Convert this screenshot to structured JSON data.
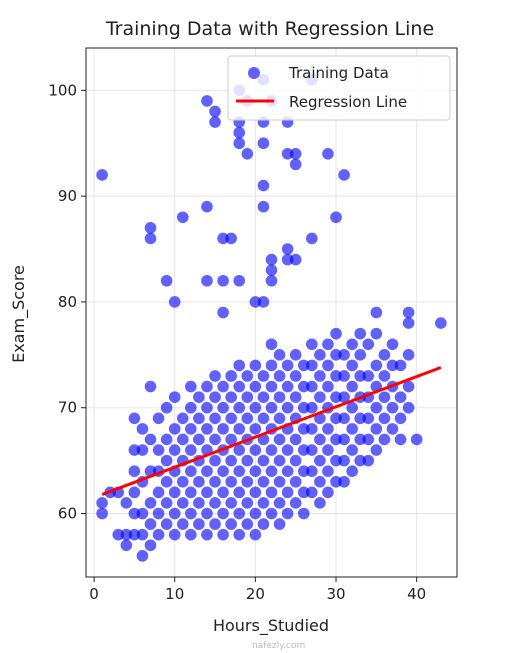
{
  "chart_data": {
    "type": "scatter",
    "title": "Training Data with Regression Line",
    "xlabel": "Hours_Studied",
    "ylabel": "Exam_Score",
    "xlim": [
      -1,
      45
    ],
    "ylim": [
      54,
      104
    ],
    "xticks": [
      0,
      10,
      20,
      30,
      40
    ],
    "yticks": [
      60,
      70,
      80,
      90,
      100
    ],
    "grid": true,
    "legend_position": "top-right",
    "series": [
      {
        "name": "Training Data",
        "kind": "scatter",
        "color": "#0000ff",
        "points": [
          [
            1,
            92
          ],
          [
            1,
            61
          ],
          [
            1,
            60
          ],
          [
            2,
            62
          ],
          [
            3,
            58
          ],
          [
            3,
            62
          ],
          [
            4,
            57
          ],
          [
            4,
            58
          ],
          [
            4,
            61
          ],
          [
            5,
            58
          ],
          [
            5,
            60
          ],
          [
            5,
            62
          ],
          [
            5,
            64
          ],
          [
            5,
            66
          ],
          [
            5,
            69
          ],
          [
            6,
            56
          ],
          [
            6,
            58
          ],
          [
            6,
            60
          ],
          [
            6,
            63
          ],
          [
            6,
            66
          ],
          [
            6,
            68
          ],
          [
            7,
            57
          ],
          [
            7,
            59
          ],
          [
            7,
            61
          ],
          [
            7,
            64
          ],
          [
            7,
            67
          ],
          [
            7,
            72
          ],
          [
            7,
            86
          ],
          [
            7,
            87
          ],
          [
            8,
            58
          ],
          [
            8,
            60
          ],
          [
            8,
            62
          ],
          [
            8,
            64
          ],
          [
            8,
            66
          ],
          [
            8,
            69
          ],
          [
            9,
            59
          ],
          [
            9,
            61
          ],
          [
            9,
            63
          ],
          [
            9,
            65
          ],
          [
            9,
            67
          ],
          [
            9,
            70
          ],
          [
            9,
            82
          ],
          [
            10,
            58
          ],
          [
            10,
            60
          ],
          [
            10,
            62
          ],
          [
            10,
            64
          ],
          [
            10,
            66
          ],
          [
            10,
            68
          ],
          [
            10,
            71
          ],
          [
            10,
            80
          ],
          [
            11,
            59
          ],
          [
            11,
            61
          ],
          [
            11,
            63
          ],
          [
            11,
            65
          ],
          [
            11,
            67
          ],
          [
            11,
            69
          ],
          [
            11,
            88
          ],
          [
            12,
            58
          ],
          [
            12,
            60
          ],
          [
            12,
            62
          ],
          [
            12,
            64
          ],
          [
            12,
            66
          ],
          [
            12,
            68
          ],
          [
            12,
            70
          ],
          [
            12,
            72
          ],
          [
            13,
            59
          ],
          [
            13,
            61
          ],
          [
            13,
            63
          ],
          [
            13,
            65
          ],
          [
            13,
            67
          ],
          [
            13,
            69
          ],
          [
            13,
            71
          ],
          [
            14,
            58
          ],
          [
            14,
            60
          ],
          [
            14,
            62
          ],
          [
            14,
            64
          ],
          [
            14,
            66
          ],
          [
            14,
            68
          ],
          [
            14,
            70
          ],
          [
            14,
            72
          ],
          [
            14,
            82
          ],
          [
            14,
            89
          ],
          [
            14,
            99
          ],
          [
            15,
            59
          ],
          [
            15,
            61
          ],
          [
            15,
            63
          ],
          [
            15,
            65
          ],
          [
            15,
            67
          ],
          [
            15,
            69
          ],
          [
            15,
            71
          ],
          [
            15,
            73
          ],
          [
            15,
            97
          ],
          [
            15,
            98
          ],
          [
            16,
            58
          ],
          [
            16,
            60
          ],
          [
            16,
            62
          ],
          [
            16,
            64
          ],
          [
            16,
            66
          ],
          [
            16,
            68
          ],
          [
            16,
            70
          ],
          [
            16,
            72
          ],
          [
            16,
            79
          ],
          [
            16,
            82
          ],
          [
            16,
            86
          ],
          [
            17,
            59
          ],
          [
            17,
            61
          ],
          [
            17,
            63
          ],
          [
            17,
            65
          ],
          [
            17,
            67
          ],
          [
            17,
            69
          ],
          [
            17,
            71
          ],
          [
            17,
            73
          ],
          [
            17,
            86
          ],
          [
            18,
            58
          ],
          [
            18,
            60
          ],
          [
            18,
            62
          ],
          [
            18,
            64
          ],
          [
            18,
            66
          ],
          [
            18,
            68
          ],
          [
            18,
            70
          ],
          [
            18,
            72
          ],
          [
            18,
            74
          ],
          [
            18,
            82
          ],
          [
            18,
            95
          ],
          [
            18,
            96
          ],
          [
            18,
            97
          ],
          [
            18,
            100
          ],
          [
            19,
            59
          ],
          [
            19,
            61
          ],
          [
            19,
            63
          ],
          [
            19,
            65
          ],
          [
            19,
            67
          ],
          [
            19,
            69
          ],
          [
            19,
            71
          ],
          [
            19,
            73
          ],
          [
            19,
            94
          ],
          [
            19,
            99
          ],
          [
            20,
            58
          ],
          [
            20,
            60
          ],
          [
            20,
            62
          ],
          [
            20,
            64
          ],
          [
            20,
            66
          ],
          [
            20,
            68
          ],
          [
            20,
            70
          ],
          [
            20,
            72
          ],
          [
            20,
            74
          ],
          [
            20,
            80
          ],
          [
            21,
            59
          ],
          [
            21,
            61
          ],
          [
            21,
            63
          ],
          [
            21,
            65
          ],
          [
            21,
            67
          ],
          [
            21,
            69
          ],
          [
            21,
            71
          ],
          [
            21,
            73
          ],
          [
            21,
            80
          ],
          [
            21,
            89
          ],
          [
            21,
            91
          ],
          [
            21,
            95
          ],
          [
            21,
            97
          ],
          [
            21,
            101
          ],
          [
            22,
            60
          ],
          [
            22,
            62
          ],
          [
            22,
            64
          ],
          [
            22,
            66
          ],
          [
            22,
            68
          ],
          [
            22,
            70
          ],
          [
            22,
            72
          ],
          [
            22,
            74
          ],
          [
            22,
            76
          ],
          [
            22,
            82
          ],
          [
            22,
            83
          ],
          [
            22,
            84
          ],
          [
            22,
            99
          ],
          [
            23,
            59
          ],
          [
            23,
            61
          ],
          [
            23,
            63
          ],
          [
            23,
            65
          ],
          [
            23,
            67
          ],
          [
            23,
            69
          ],
          [
            23,
            71
          ],
          [
            23,
            73
          ],
          [
            23,
            75
          ],
          [
            24,
            60
          ],
          [
            24,
            62
          ],
          [
            24,
            64
          ],
          [
            24,
            66
          ],
          [
            24,
            68
          ],
          [
            24,
            70
          ],
          [
            24,
            72
          ],
          [
            24,
            74
          ],
          [
            24,
            84
          ],
          [
            24,
            85
          ],
          [
            24,
            94
          ],
          [
            24,
            97
          ],
          [
            25,
            61
          ],
          [
            25,
            63
          ],
          [
            25,
            65
          ],
          [
            25,
            67
          ],
          [
            25,
            69
          ],
          [
            25,
            71
          ],
          [
            25,
            73
          ],
          [
            25,
            75
          ],
          [
            25,
            84
          ],
          [
            25,
            93
          ],
          [
            25,
            94
          ],
          [
            26,
            60
          ],
          [
            26,
            62
          ],
          [
            26,
            64
          ],
          [
            26,
            66
          ],
          [
            26,
            68
          ],
          [
            26,
            70
          ],
          [
            26,
            72
          ],
          [
            26,
            74
          ],
          [
            27,
            62
          ],
          [
            27,
            64
          ],
          [
            27,
            66
          ],
          [
            27,
            68
          ],
          [
            27,
            70
          ],
          [
            27,
            72
          ],
          [
            27,
            74
          ],
          [
            27,
            76
          ],
          [
            27,
            86
          ],
          [
            27,
            101
          ],
          [
            28,
            61
          ],
          [
            28,
            63
          ],
          [
            28,
            65
          ],
          [
            28,
            67
          ],
          [
            28,
            69
          ],
          [
            28,
            71
          ],
          [
            28,
            73
          ],
          [
            28,
            75
          ],
          [
            29,
            62
          ],
          [
            29,
            64
          ],
          [
            29,
            66
          ],
          [
            29,
            68
          ],
          [
            29,
            70
          ],
          [
            29,
            72
          ],
          [
            29,
            74
          ],
          [
            29,
            76
          ],
          [
            29,
            94
          ],
          [
            30,
            63
          ],
          [
            30,
            65
          ],
          [
            30,
            67
          ],
          [
            30,
            69
          ],
          [
            30,
            71
          ],
          [
            30,
            73
          ],
          [
            30,
            75
          ],
          [
            30,
            77
          ],
          [
            30,
            88
          ],
          [
            31,
            63
          ],
          [
            31,
            65
          ],
          [
            31,
            67
          ],
          [
            31,
            69
          ],
          [
            31,
            71
          ],
          [
            31,
            73
          ],
          [
            31,
            75
          ],
          [
            31,
            92
          ],
          [
            32,
            64
          ],
          [
            32,
            66
          ],
          [
            32,
            68
          ],
          [
            32,
            70
          ],
          [
            32,
            72
          ],
          [
            32,
            74
          ],
          [
            32,
            76
          ],
          [
            33,
            65
          ],
          [
            33,
            67
          ],
          [
            33,
            69
          ],
          [
            33,
            71
          ],
          [
            33,
            73
          ],
          [
            33,
            75
          ],
          [
            33,
            77
          ],
          [
            34,
            65
          ],
          [
            34,
            67
          ],
          [
            34,
            69
          ],
          [
            34,
            71
          ],
          [
            34,
            73
          ],
          [
            34,
            76
          ],
          [
            35,
            66
          ],
          [
            35,
            68
          ],
          [
            35,
            70
          ],
          [
            35,
            72
          ],
          [
            35,
            74
          ],
          [
            35,
            77
          ],
          [
            35,
            79
          ],
          [
            36,
            67
          ],
          [
            36,
            69
          ],
          [
            36,
            71
          ],
          [
            36,
            73
          ],
          [
            36,
            75
          ],
          [
            37,
            68
          ],
          [
            37,
            70
          ],
          [
            37,
            72
          ],
          [
            37,
            74
          ],
          [
            37,
            76
          ],
          [
            38,
            67
          ],
          [
            38,
            69
          ],
          [
            38,
            71
          ],
          [
            38,
            74
          ],
          [
            39,
            70
          ],
          [
            39,
            72
          ],
          [
            39,
            75
          ],
          [
            39,
            78
          ],
          [
            39,
            79
          ],
          [
            40,
            67
          ],
          [
            43,
            78
          ]
        ]
      },
      {
        "name": "Regression Line",
        "kind": "line",
        "color": "#ff0000",
        "points": [
          [
            1,
            61.8
          ],
          [
            43,
            73.8
          ]
        ]
      }
    ]
  },
  "watermark": "nafezly.com"
}
